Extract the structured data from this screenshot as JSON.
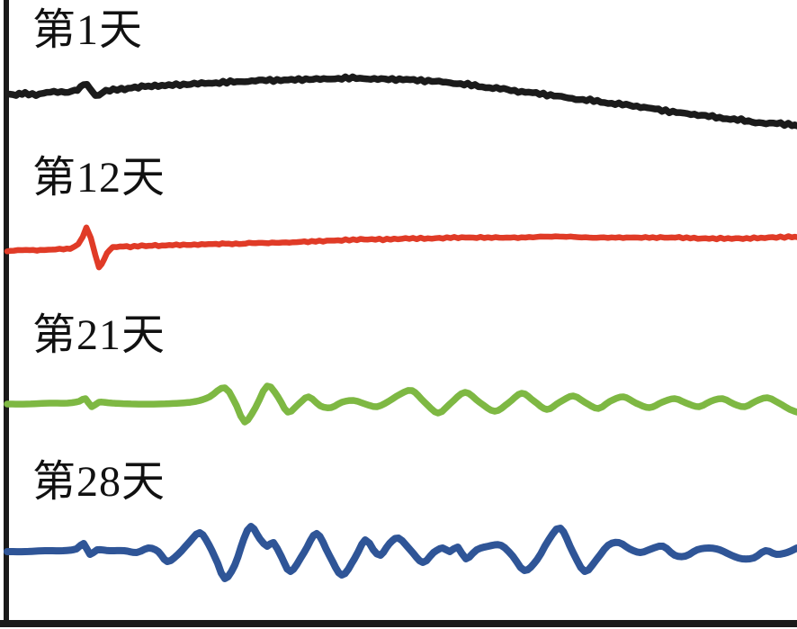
{
  "page": {
    "background": "#ffffff"
  },
  "chart_data": {
    "type": "line",
    "title": "",
    "xlabel": "",
    "ylabel": "",
    "legend": "none",
    "grid": false,
    "axes": {
      "style": "left-and-bottom-spines-only",
      "color": "#1a1a1a",
      "tick_labels": "none"
    },
    "units_note": "digitized waveform traces in figure pixel coordinates (y increases downward)",
    "series": [
      {
        "name": "第1天",
        "color": "#1b1b1b",
        "stroke_width": 7.5,
        "jitter": 1.8,
        "points": [
          [
            8,
            104
          ],
          [
            18,
            105
          ],
          [
            28,
            104
          ],
          [
            40,
            105
          ],
          [
            52,
            103
          ],
          [
            64,
            102
          ],
          [
            76,
            102
          ],
          [
            86,
            100
          ],
          [
            93,
            93
          ],
          [
            100,
            98
          ],
          [
            106,
            107
          ],
          [
            114,
            103
          ],
          [
            122,
            100
          ],
          [
            135,
            99
          ],
          [
            150,
            97
          ],
          [
            165,
            96
          ],
          [
            180,
            95
          ],
          [
            200,
            94
          ],
          [
            220,
            93
          ],
          [
            240,
            92
          ],
          [
            260,
            91
          ],
          [
            280,
            90
          ],
          [
            300,
            89
          ],
          [
            320,
            89
          ],
          [
            340,
            88
          ],
          [
            360,
            88
          ],
          [
            380,
            87
          ],
          [
            400,
            87
          ],
          [
            420,
            88
          ],
          [
            440,
            88
          ],
          [
            460,
            89
          ],
          [
            480,
            90
          ],
          [
            500,
            92
          ],
          [
            520,
            94
          ],
          [
            540,
            97
          ],
          [
            560,
            99
          ],
          [
            580,
            102
          ],
          [
            600,
            104
          ],
          [
            620,
            107
          ],
          [
            640,
            110
          ],
          [
            660,
            112
          ],
          [
            680,
            115
          ],
          [
            700,
            117
          ],
          [
            720,
            120
          ],
          [
            740,
            123
          ],
          [
            760,
            126
          ],
          [
            780,
            128
          ],
          [
            800,
            131
          ],
          [
            820,
            133
          ],
          [
            840,
            136
          ],
          [
            860,
            137
          ],
          [
            886,
            139
          ]
        ]
      },
      {
        "name": "第12天",
        "color": "#e03b27",
        "stroke_width": 6.5,
        "jitter": 1.0,
        "points": [
          [
            8,
            279
          ],
          [
            25,
            278
          ],
          [
            45,
            278
          ],
          [
            62,
            277
          ],
          [
            78,
            276
          ],
          [
            87,
            271
          ],
          [
            92,
            263
          ],
          [
            96,
            253
          ],
          [
            101,
            264
          ],
          [
            106,
            284
          ],
          [
            110,
            297
          ],
          [
            116,
            287
          ],
          [
            122,
            277
          ],
          [
            130,
            274
          ],
          [
            145,
            274
          ],
          [
            162,
            273
          ],
          [
            180,
            273
          ],
          [
            200,
            272
          ],
          [
            220,
            272
          ],
          [
            240,
            271
          ],
          [
            262,
            271
          ],
          [
            284,
            270
          ],
          [
            306,
            270
          ],
          [
            330,
            269
          ],
          [
            355,
            268
          ],
          [
            380,
            267
          ],
          [
            405,
            266
          ],
          [
            430,
            266
          ],
          [
            455,
            265
          ],
          [
            480,
            265
          ],
          [
            505,
            264
          ],
          [
            530,
            264
          ],
          [
            555,
            264
          ],
          [
            580,
            264
          ],
          [
            605,
            263
          ],
          [
            630,
            263
          ],
          [
            655,
            264
          ],
          [
            680,
            264
          ],
          [
            705,
            264
          ],
          [
            730,
            264
          ],
          [
            755,
            264
          ],
          [
            780,
            265
          ],
          [
            805,
            265
          ],
          [
            830,
            265
          ],
          [
            855,
            264
          ],
          [
            886,
            263
          ]
        ]
      },
      {
        "name": "第21天",
        "color": "#7eb843",
        "stroke_width": 7.5,
        "jitter": 0,
        "points": [
          [
            8,
            449
          ],
          [
            30,
            449
          ],
          [
            55,
            448
          ],
          [
            75,
            448
          ],
          [
            88,
            446
          ],
          [
            95,
            443
          ],
          [
            102,
            452
          ],
          [
            110,
            447
          ],
          [
            125,
            448
          ],
          [
            150,
            449
          ],
          [
            175,
            449
          ],
          [
            200,
            448
          ],
          [
            218,
            446
          ],
          [
            233,
            441
          ],
          [
            250,
            431
          ],
          [
            263,
            451
          ],
          [
            272,
            469
          ],
          [
            284,
            453
          ],
          [
            297,
            429
          ],
          [
            309,
            441
          ],
          [
            320,
            458
          ],
          [
            332,
            449
          ],
          [
            343,
            441
          ],
          [
            356,
            451
          ],
          [
            368,
            453
          ],
          [
            380,
            447
          ],
          [
            393,
            445
          ],
          [
            406,
            449
          ],
          [
            419,
            452
          ],
          [
            432,
            446
          ],
          [
            445,
            438
          ],
          [
            458,
            434
          ],
          [
            472,
            447
          ],
          [
            487,
            459
          ],
          [
            500,
            449
          ],
          [
            517,
            436
          ],
          [
            533,
            447
          ],
          [
            550,
            457
          ],
          [
            565,
            448
          ],
          [
            580,
            437
          ],
          [
            594,
            446
          ],
          [
            608,
            455
          ],
          [
            622,
            447
          ],
          [
            637,
            440
          ],
          [
            650,
            447
          ],
          [
            665,
            454
          ],
          [
            678,
            446
          ],
          [
            693,
            441
          ],
          [
            707,
            448
          ],
          [
            722,
            453
          ],
          [
            736,
            447
          ],
          [
            750,
            443
          ],
          [
            763,
            448
          ],
          [
            777,
            452
          ],
          [
            790,
            446
          ],
          [
            803,
            443
          ],
          [
            816,
            449
          ],
          [
            828,
            452
          ],
          [
            840,
            446
          ],
          [
            853,
            442
          ],
          [
            866,
            448
          ],
          [
            878,
            455
          ],
          [
            886,
            458
          ]
        ]
      },
      {
        "name": "第28天",
        "color": "#2f5597",
        "stroke_width": 8,
        "jitter": 0,
        "points": [
          [
            8,
            613
          ],
          [
            28,
            613
          ],
          [
            50,
            612
          ],
          [
            70,
            612
          ],
          [
            85,
            610
          ],
          [
            93,
            604
          ],
          [
            100,
            616
          ],
          [
            108,
            611
          ],
          [
            122,
            612
          ],
          [
            138,
            612
          ],
          [
            152,
            614
          ],
          [
            165,
            609
          ],
          [
            176,
            613
          ],
          [
            186,
            624
          ],
          [
            198,
            616
          ],
          [
            210,
            603
          ],
          [
            222,
            592
          ],
          [
            232,
            605
          ],
          [
            242,
            626
          ],
          [
            250,
            643
          ],
          [
            261,
            628
          ],
          [
            271,
            599
          ],
          [
            279,
            585
          ],
          [
            289,
            599
          ],
          [
            297,
            607
          ],
          [
            304,
            603
          ],
          [
            313,
            619
          ],
          [
            323,
            635
          ],
          [
            338,
            614
          ],
          [
            352,
            593
          ],
          [
            366,
            617
          ],
          [
            380,
            639
          ],
          [
            394,
            621
          ],
          [
            406,
            600
          ],
          [
            415,
            611
          ],
          [
            423,
            617
          ],
          [
            433,
            604
          ],
          [
            443,
            598
          ],
          [
            456,
            611
          ],
          [
            470,
            625
          ],
          [
            482,
            614
          ],
          [
            492,
            609
          ],
          [
            500,
            613
          ],
          [
            509,
            608
          ],
          [
            518,
            621
          ],
          [
            530,
            611
          ],
          [
            543,
            607
          ],
          [
            557,
            606
          ],
          [
            570,
            618
          ],
          [
            583,
            634
          ],
          [
            597,
            622
          ],
          [
            610,
            600
          ],
          [
            623,
            587
          ],
          [
            637,
            614
          ],
          [
            650,
            635
          ],
          [
            663,
            622
          ],
          [
            676,
            606
          ],
          [
            688,
            603
          ],
          [
            700,
            610
          ],
          [
            712,
            614
          ],
          [
            724,
            610
          ],
          [
            737,
            607
          ],
          [
            750,
            617
          ],
          [
            762,
            618
          ],
          [
            775,
            611
          ],
          [
            788,
            609
          ],
          [
            800,
            611
          ],
          [
            813,
            617
          ],
          [
            825,
            621
          ],
          [
            838,
            620
          ],
          [
            851,
            612
          ],
          [
            863,
            616
          ],
          [
            875,
            614
          ],
          [
            886,
            609
          ]
        ]
      }
    ]
  }
}
